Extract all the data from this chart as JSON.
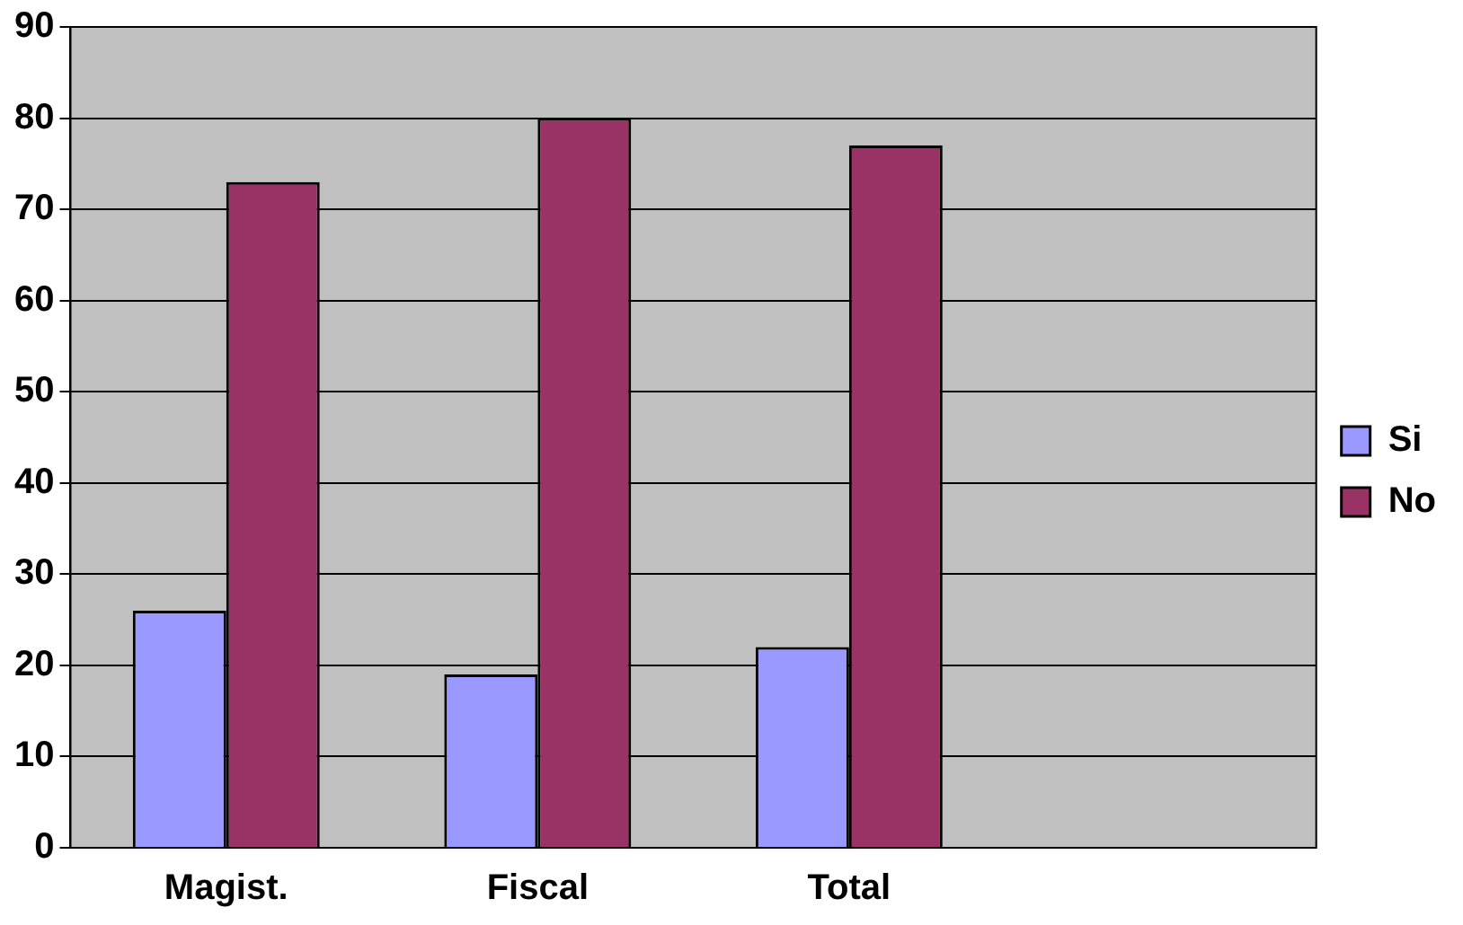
{
  "chart_data": {
    "type": "bar",
    "categories": [
      "Magist.",
      "Fiscal",
      "Total",
      null
    ],
    "series": [
      {
        "name": "Si",
        "color": "#9999ff",
        "values": [
          26,
          19,
          22,
          null
        ]
      },
      {
        "name": "No",
        "color": "#993366",
        "values": [
          73,
          80,
          77,
          null
        ]
      }
    ],
    "ylim": [
      0,
      90
    ],
    "yticks": [
      0,
      10,
      20,
      30,
      40,
      50,
      60,
      70,
      80,
      90
    ],
    "grid": "y",
    "legend": "right"
  }
}
